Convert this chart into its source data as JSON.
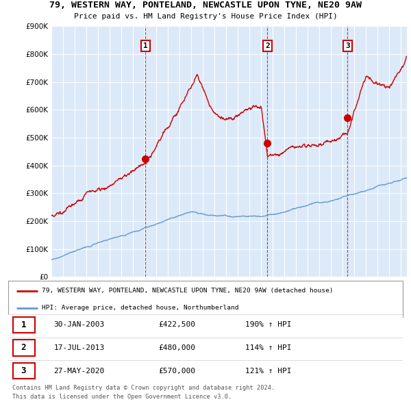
{
  "title": "79, WESTERN WAY, PONTELAND, NEWCASTLE UPON TYNE, NE20 9AW",
  "subtitle": "Price paid vs. HM Land Registry's House Price Index (HPI)",
  "ylim": [
    0,
    900000
  ],
  "yticks": [
    0,
    100000,
    200000,
    300000,
    400000,
    500000,
    600000,
    700000,
    800000,
    900000
  ],
  "ytick_labels": [
    "£0",
    "£100K",
    "£200K",
    "£300K",
    "£400K",
    "£500K",
    "£600K",
    "£700K",
    "£800K",
    "£900K"
  ],
  "xlim_start": 1995.0,
  "xlim_end": 2025.5,
  "plot_bg_color": "#dce9f8",
  "red_line_color": "#cc0000",
  "blue_line_color": "#6699cc",
  "grid_color": "#ffffff",
  "sales": [
    {
      "num": 1,
      "year": 2003.08,
      "price": 422500,
      "label": "30-JAN-2003",
      "price_str": "£422,500",
      "pct": "190% ↑ HPI"
    },
    {
      "num": 2,
      "year": 2013.54,
      "price": 480000,
      "label": "17-JUL-2013",
      "price_str": "£480,000",
      "pct": "114% ↑ HPI"
    },
    {
      "num": 3,
      "year": 2020.41,
      "price": 570000,
      "label": "27-MAY-2020",
      "price_str": "£570,000",
      "pct": "121% ↑ HPI"
    }
  ],
  "legend_line1": "79, WESTERN WAY, PONTELAND, NEWCASTLE UPON TYNE, NE20 9AW (detached house)",
  "legend_line2": "HPI: Average price, detached house, Northumberland",
  "footer1": "Contains HM Land Registry data © Crown copyright and database right 2024.",
  "footer2": "This data is licensed under the Open Government Licence v3.0."
}
